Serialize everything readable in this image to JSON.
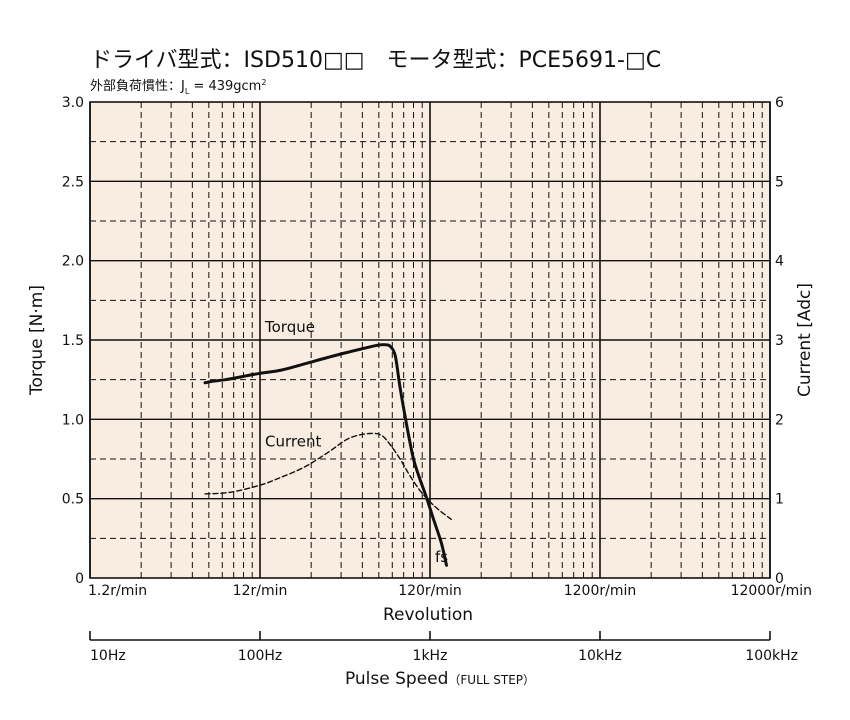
{
  "chart_data": {
    "type": "line",
    "title": "ドライバ型式：ISD510□□　モータ型式：PCE5691-□C",
    "subtitle_label": "外部負荷慣性：J",
    "subtitle_sub": "L",
    "subtitle_value": " = 439gcm",
    "subtitle_sup": "2",
    "ylabel_left": "Torque  [N·m]",
    "ylabel_right": "Current  [Adc]",
    "xlabel": "Revolution",
    "xlabel2": "Pulse Speed",
    "xlabel2_note": "（FULL STEP）",
    "x_scale": "log",
    "xlim": [
      1.2,
      12000
    ],
    "ylim_left": [
      0,
      3.0
    ],
    "ylim_right": [
      0,
      6
    ],
    "x_ticks": [
      {
        "value": 1.2,
        "label": "1.2r/min"
      },
      {
        "value": 12,
        "label": "12r/min"
      },
      {
        "value": 120,
        "label": "120r/min"
      },
      {
        "value": 1200,
        "label": "1200r/min"
      },
      {
        "value": 12000,
        "label": "12000r/min"
      }
    ],
    "pulse_ticks": [
      {
        "value": 1.2,
        "label": "10Hz"
      },
      {
        "value": 12,
        "label": "100Hz"
      },
      {
        "value": 120,
        "label": "1kHz"
      },
      {
        "value": 1200,
        "label": "10kHz"
      },
      {
        "value": 12000,
        "label": "100kHz"
      }
    ],
    "y_ticks_left": [
      {
        "value": 0,
        "label": "0"
      },
      {
        "value": 0.5,
        "label": "0.5"
      },
      {
        "value": 1.0,
        "label": "1.0"
      },
      {
        "value": 1.5,
        "label": "1.5"
      },
      {
        "value": 2.0,
        "label": "2.0"
      },
      {
        "value": 2.5,
        "label": "2.5"
      },
      {
        "value": 3.0,
        "label": "3.0"
      }
    ],
    "y_ticks_right": [
      {
        "value": 0,
        "label": "0"
      },
      {
        "value": 1,
        "label": "1"
      },
      {
        "value": 2,
        "label": "2"
      },
      {
        "value": 3,
        "label": "3"
      },
      {
        "value": 4,
        "label": "4"
      },
      {
        "value": 5,
        "label": "5"
      },
      {
        "value": 6,
        "label": "6"
      }
    ],
    "series": [
      {
        "name": "Torque",
        "axis": "left",
        "style": "solid",
        "color": "#111111",
        "x": [
          5.7,
          6.3,
          7.5,
          9.5,
          12,
          16,
          22,
          30,
          42,
          55,
          62,
          66,
          70,
          75,
          80,
          88,
          96,
          105,
          115,
          125,
          140,
          150
        ],
        "y": [
          1.23,
          1.24,
          1.25,
          1.27,
          1.29,
          1.31,
          1.35,
          1.39,
          1.43,
          1.46,
          1.47,
          1.47,
          1.46,
          1.4,
          1.2,
          0.95,
          0.75,
          0.62,
          0.5,
          0.38,
          0.22,
          0.08
        ]
      },
      {
        "name": "Current",
        "axis": "right",
        "style": "dashed",
        "color": "#111111",
        "x": [
          5.7,
          8,
          12,
          16,
          22,
          30,
          40,
          52,
          62,
          70,
          80,
          92,
          105,
          120,
          135,
          160
        ],
        "y": [
          1.06,
          1.08,
          1.17,
          1.27,
          1.4,
          1.58,
          1.76,
          1.82,
          1.8,
          1.68,
          1.5,
          1.28,
          1.1,
          0.96,
          0.86,
          0.74
        ]
      }
    ],
    "annotations": [
      {
        "text": "Torque",
        "x": 12,
        "y": 1.55
      },
      {
        "text": "Current",
        "x": 12,
        "y": 0.83
      },
      {
        "text": "fs",
        "x": 120,
        "y": 0.1
      }
    ],
    "bg_color": "#f8ede0",
    "grid": true
  }
}
